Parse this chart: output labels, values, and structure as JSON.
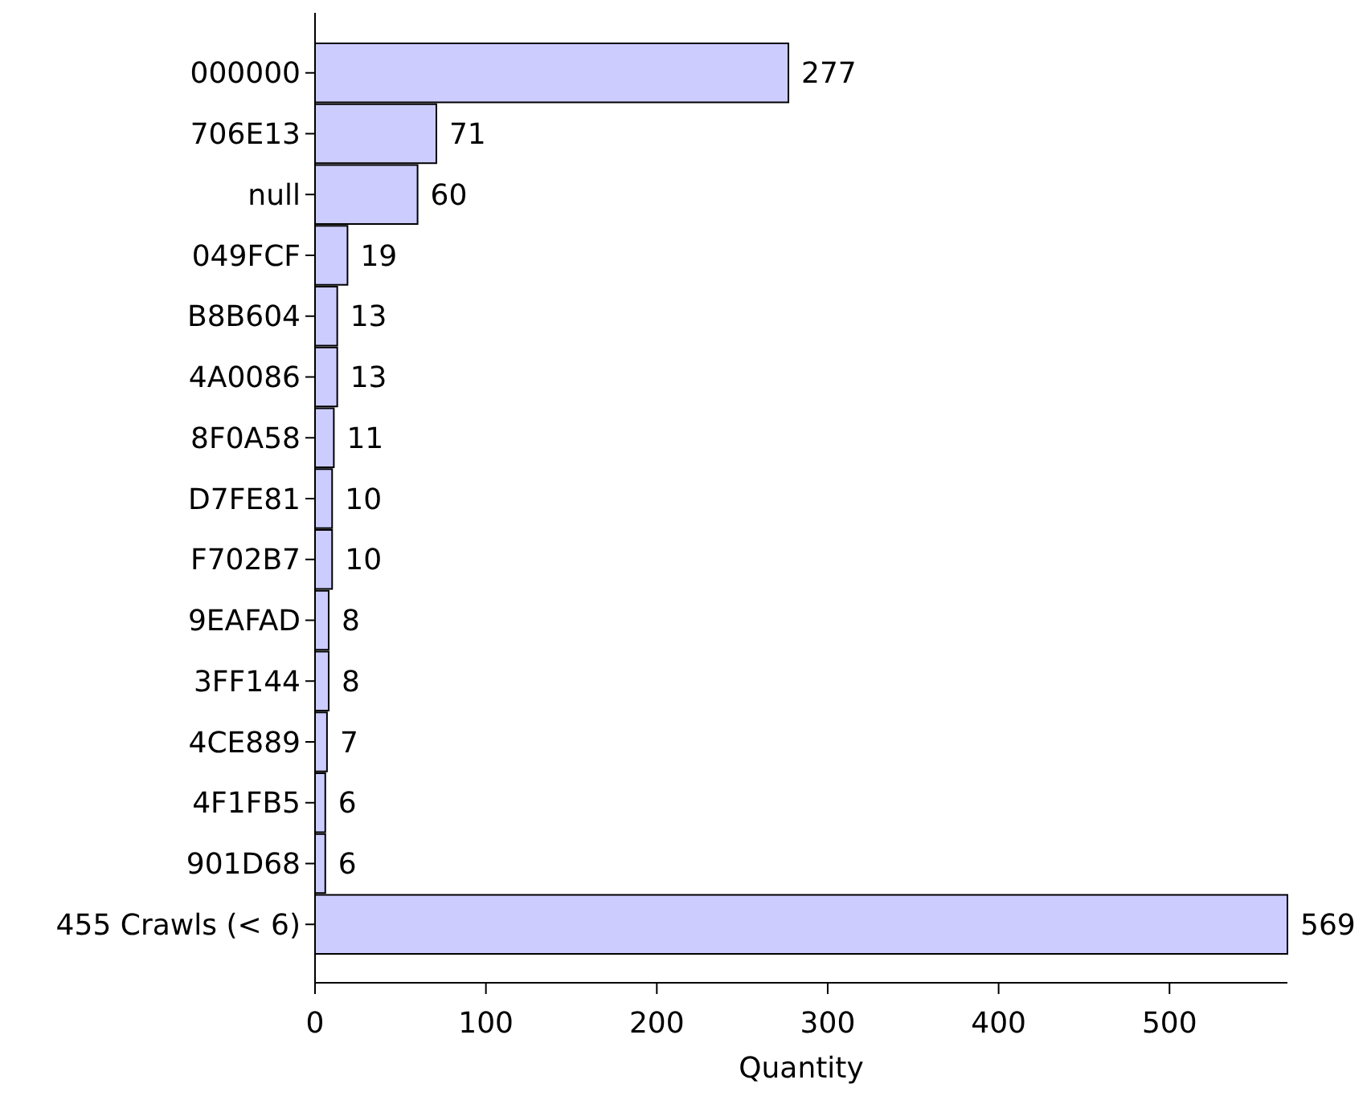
{
  "chart_data": {
    "type": "bar",
    "orientation": "horizontal",
    "xlabel": "Quantity",
    "categories": [
      "000000",
      "706E13",
      "null",
      "049FCF",
      "B8B604",
      "4A0086",
      "8F0A58",
      "D7FE81",
      "F702B7",
      "9EAFAD",
      "3FF144",
      "4CE889",
      "4F1FB5",
      "901D68",
      "455 Crawls (< 6)"
    ],
    "values": [
      277,
      71,
      60,
      19,
      13,
      13,
      11,
      10,
      10,
      8,
      8,
      7,
      6,
      6,
      569
    ],
    "color": "#ccccff",
    "xlim": [
      0,
      569
    ],
    "xticks": [
      0,
      100,
      200,
      300,
      400,
      500
    ],
    "data_labels": true
  }
}
